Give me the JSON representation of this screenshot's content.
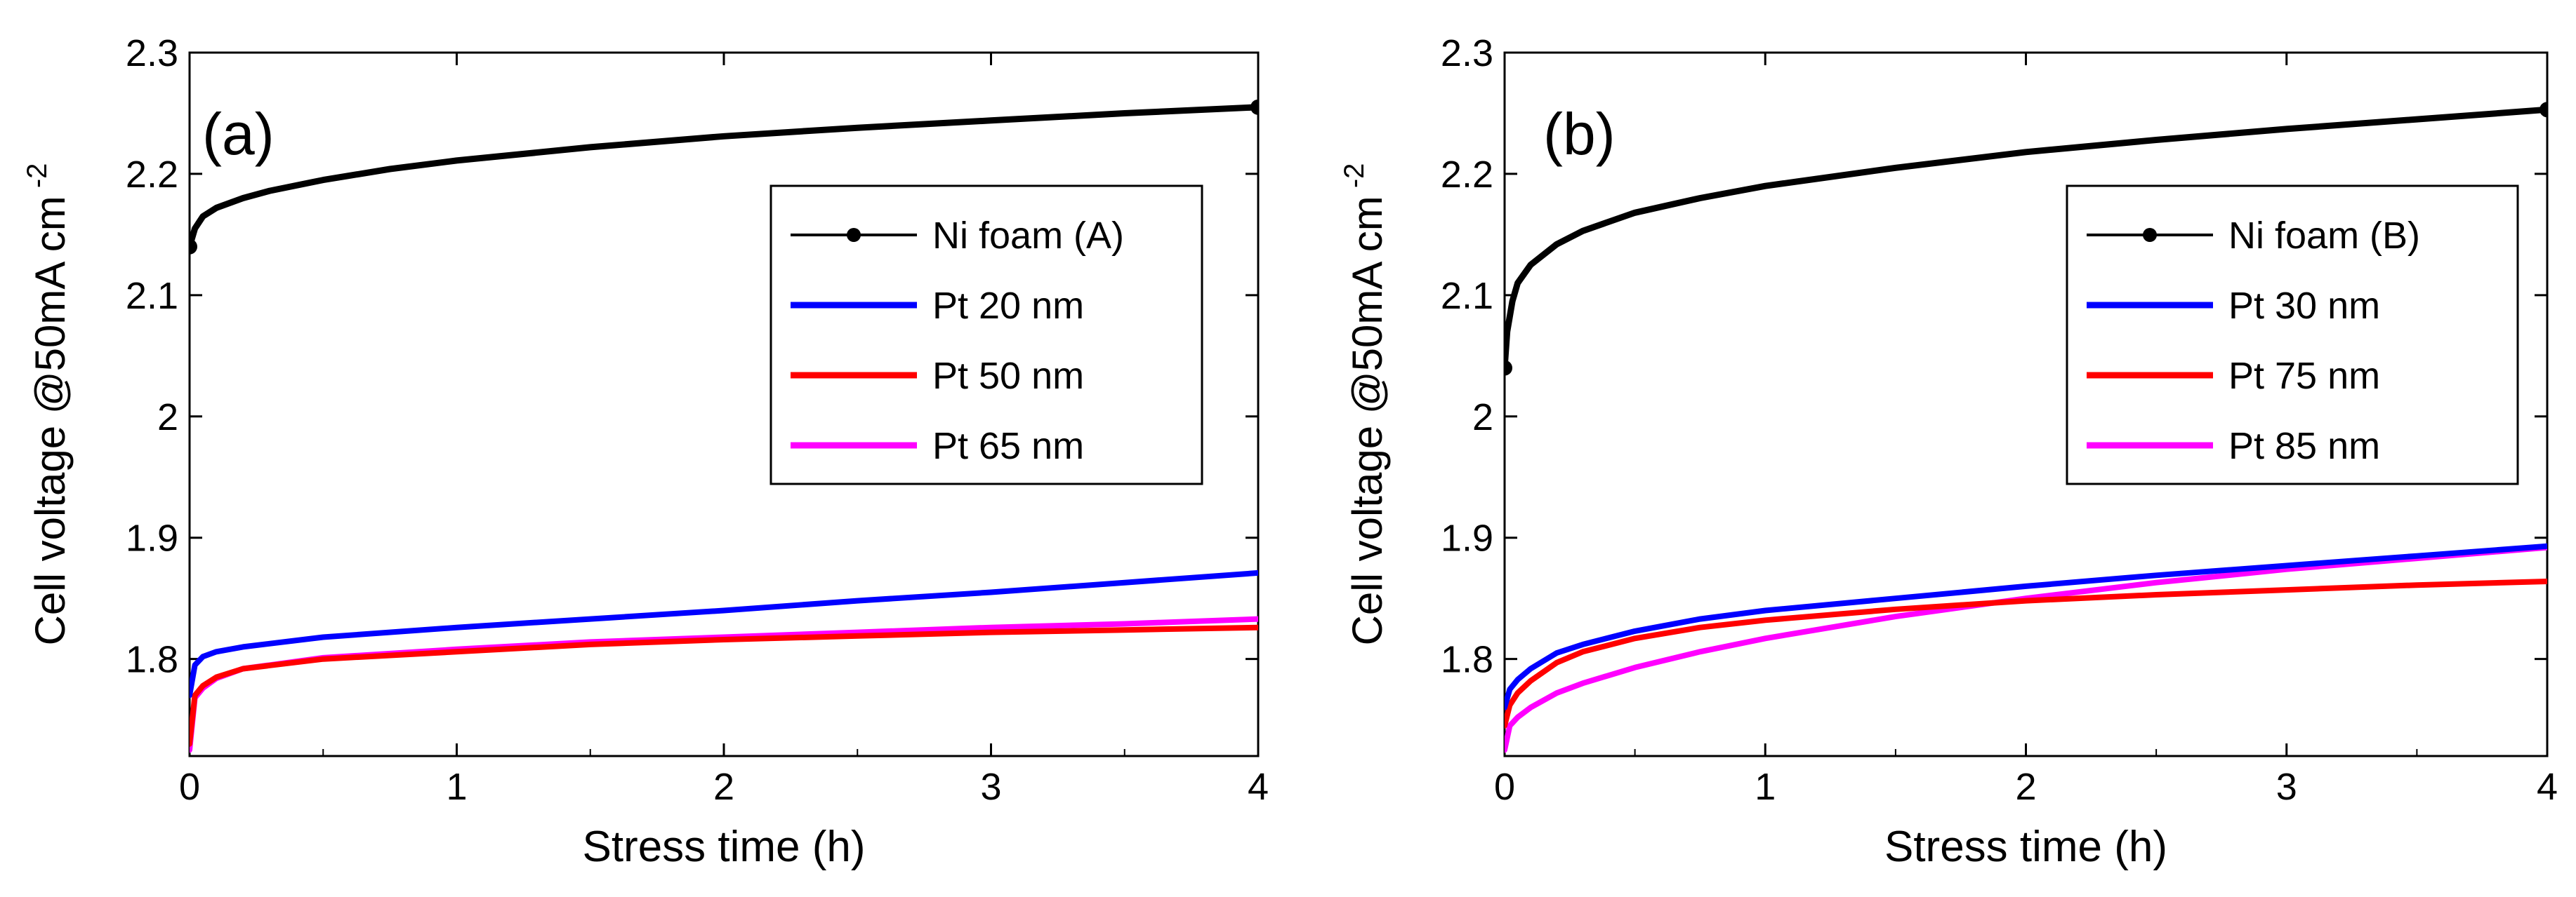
{
  "chart_data": [
    {
      "type": "line",
      "panel_label": "(a)",
      "xlabel": "Stress time  (h)",
      "ylabel": "Cell voltage @50mA cm",
      "ylabel_sup": "-2",
      "xlim": [
        0,
        4
      ],
      "ylim": [
        1.72,
        2.3
      ],
      "xticks": [
        "0",
        "1",
        "2",
        "3",
        "4"
      ],
      "yticks": [
        "1.8",
        "1.9",
        "2",
        "2.1",
        "2.2",
        "2.3"
      ],
      "legend_position": "upper-right",
      "series": [
        {
          "name": "Ni foam (A)",
          "color": "#000000",
          "marker": "dot",
          "x": [
            0,
            0.02,
            0.05,
            0.1,
            0.2,
            0.3,
            0.5,
            0.75,
            1.0,
            1.5,
            2.0,
            2.5,
            3.0,
            3.5,
            4.0
          ],
          "y": [
            2.14,
            2.155,
            2.165,
            2.172,
            2.18,
            2.186,
            2.195,
            2.204,
            2.211,
            2.222,
            2.231,
            2.238,
            2.244,
            2.25,
            2.255
          ]
        },
        {
          "name": "Pt 20 nm",
          "color": "#0000ff",
          "x": [
            0,
            0.02,
            0.05,
            0.1,
            0.2,
            0.5,
            1.0,
            1.5,
            2.0,
            2.5,
            3.0,
            3.5,
            4.0
          ],
          "y": [
            1.77,
            1.795,
            1.802,
            1.806,
            1.81,
            1.818,
            1.826,
            1.833,
            1.84,
            1.848,
            1.855,
            1.863,
            1.871
          ]
        },
        {
          "name": "Pt 50 nm",
          "color": "#ff0000",
          "x": [
            0,
            0.02,
            0.05,
            0.1,
            0.2,
            0.5,
            1.0,
            1.5,
            2.0,
            2.5,
            3.0,
            3.5,
            4.0
          ],
          "y": [
            1.73,
            1.77,
            1.778,
            1.785,
            1.792,
            1.8,
            1.806,
            1.812,
            1.816,
            1.819,
            1.822,
            1.824,
            1.826
          ]
        },
        {
          "name": "Pt 65 nm",
          "color": "#ff00ff",
          "x": [
            0,
            0.02,
            0.05,
            0.1,
            0.2,
            0.5,
            1.0,
            1.5,
            2.0,
            2.5,
            3.0,
            3.5,
            4.0
          ],
          "y": [
            1.725,
            1.768,
            1.776,
            1.784,
            1.792,
            1.801,
            1.808,
            1.814,
            1.818,
            1.822,
            1.826,
            1.829,
            1.833
          ]
        }
      ]
    },
    {
      "type": "line",
      "panel_label": "(b)",
      "xlabel": "Stress time (h)",
      "ylabel": "Cell voltage @50mA cm",
      "ylabel_sup": "-2",
      "xlim": [
        0,
        4
      ],
      "ylim": [
        1.72,
        2.3
      ],
      "xticks": [
        "0",
        "1",
        "2",
        "3",
        "4"
      ],
      "yticks": [
        "1.8",
        "1.9",
        "2",
        "2.1",
        "2.2",
        "2.3"
      ],
      "legend_position": "upper-right",
      "series": [
        {
          "name": "Ni foam (B)",
          "color": "#000000",
          "marker": "dot",
          "x": [
            0,
            0.01,
            0.03,
            0.05,
            0.1,
            0.2,
            0.3,
            0.5,
            0.75,
            1.0,
            1.5,
            2.0,
            2.5,
            3.0,
            3.5,
            4.0
          ],
          "y": [
            2.04,
            2.07,
            2.095,
            2.11,
            2.125,
            2.142,
            2.153,
            2.168,
            2.18,
            2.19,
            2.205,
            2.218,
            2.228,
            2.237,
            2.245,
            2.253
          ]
        },
        {
          "name": "Pt 30 nm",
          "color": "#0000ff",
          "x": [
            0,
            0.02,
            0.05,
            0.1,
            0.2,
            0.3,
            0.5,
            0.75,
            1.0,
            1.5,
            2.0,
            2.5,
            3.0,
            3.5,
            4.0
          ],
          "y": [
            1.76,
            1.775,
            1.783,
            1.792,
            1.805,
            1.812,
            1.823,
            1.833,
            1.84,
            1.85,
            1.86,
            1.869,
            1.877,
            1.885,
            1.893
          ]
        },
        {
          "name": "Pt 75 nm",
          "color": "#ff0000",
          "x": [
            0,
            0.02,
            0.05,
            0.1,
            0.2,
            0.3,
            0.5,
            0.75,
            1.0,
            1.5,
            2.0,
            2.5,
            3.0,
            3.5,
            4.0
          ],
          "y": [
            1.745,
            1.762,
            1.772,
            1.782,
            1.797,
            1.806,
            1.817,
            1.826,
            1.832,
            1.841,
            1.848,
            1.853,
            1.857,
            1.861,
            1.864
          ]
        },
        {
          "name": "Pt 85 nm",
          "color": "#ff00ff",
          "x": [
            0,
            0.02,
            0.05,
            0.1,
            0.2,
            0.3,
            0.5,
            0.75,
            1.0,
            1.5,
            2.0,
            2.5,
            3.0,
            3.5,
            4.0
          ],
          "y": [
            1.725,
            1.745,
            1.752,
            1.76,
            1.772,
            1.78,
            1.793,
            1.806,
            1.817,
            1.835,
            1.85,
            1.863,
            1.874,
            1.883,
            1.892
          ]
        }
      ]
    }
  ]
}
